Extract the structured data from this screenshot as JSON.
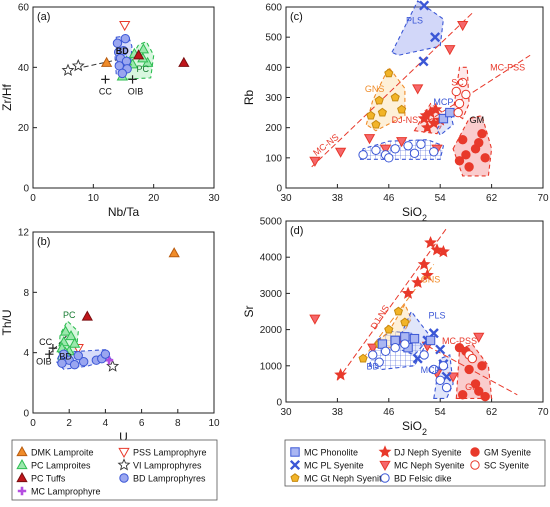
{
  "chart_data": [
    {
      "panel": "(a)",
      "type": "scatter",
      "xlabel": "Nb/Ta",
      "ylabel": "Zr/Hf",
      "xlim": [
        0,
        30
      ],
      "ylim": [
        0,
        60
      ],
      "xticks": [
        "0",
        "10",
        "20",
        "30"
      ],
      "yticks": [
        "0",
        "20",
        "40",
        "60"
      ],
      "series": [
        {
          "name": "DMK Lamproite",
          "points": [
            [
              12.2,
              41.5
            ]
          ]
        },
        {
          "name": "PSS Lamprophyre",
          "points": [
            [
              15.2,
              54
            ]
          ]
        },
        {
          "name": "PC Lamproites",
          "points": [
            [
              14.8,
              37
            ],
            [
              16.5,
              41
            ],
            [
              16.8,
              44.5
            ],
            [
              18.3,
              46
            ],
            [
              19,
              41.5
            ],
            [
              18.2,
              43
            ],
            [
              15.5,
              42
            ]
          ]
        },
        {
          "name": "VI Lamprophyres",
          "points": [
            [
              5.8,
              39
            ],
            [
              7.5,
              40.5
            ]
          ]
        },
        {
          "name": "PC Tuffs",
          "points": [
            [
              17.5,
              44
            ],
            [
              25,
              41.5
            ]
          ]
        },
        {
          "name": "BD Lamprophyres",
          "points": [
            [
              14,
              48
            ],
            [
              15.3,
              49.5
            ],
            [
              14.2,
              45
            ],
            [
              15,
              45.5
            ],
            [
              14.5,
              43
            ],
            [
              15.5,
              42
            ],
            [
              14.3,
              40.5
            ],
            [
              15.6,
              39.5
            ],
            [
              14.8,
              38
            ]
          ]
        }
      ],
      "fields": [
        "BD",
        "PC"
      ],
      "labels": [
        "CC",
        "OIB"
      ],
      "references": [
        {
          "name": "CC",
          "points": [
            [
              12,
              36
            ]
          ]
        },
        {
          "name": "OIB",
          "points": [
            [
              16.5,
              36
            ]
          ]
        }
      ]
    },
    {
      "panel": "(b)",
      "type": "scatter",
      "xlabel": "U",
      "ylabel": "Th/U",
      "xlim": [
        0,
        10
      ],
      "ylim": [
        0,
        12
      ],
      "xticks": [
        "0",
        "2",
        "4",
        "6",
        "8",
        "10"
      ],
      "yticks": [
        "0",
        "4",
        "8",
        "12"
      ],
      "series": [
        {
          "name": "DMK Lamproite",
          "points": [
            [
              7.8,
              10.6
            ]
          ]
        },
        {
          "name": "PSS Lamprophyre",
          "points": [
            [
              2.5,
              4.3
            ]
          ]
        },
        {
          "name": "PC Lamproites",
          "points": [
            [
              1.8,
              5.4
            ],
            [
              2.1,
              5.1
            ],
            [
              1.7,
              4.7
            ],
            [
              2.3,
              4.6
            ],
            [
              1.6,
              4.3
            ],
            [
              2,
              4.1
            ],
            [
              1.8,
              4
            ]
          ]
        },
        {
          "name": "VI Lamprophyres",
          "points": [
            [
              4.4,
              3.1
            ]
          ]
        },
        {
          "name": "PC Tuffs",
          "points": [
            [
              3,
              6.4
            ]
          ]
        },
        {
          "name": "MC Lamprophyre",
          "points": [
            [
              4.2,
              3.5
            ]
          ]
        },
        {
          "name": "BD Lamprophyres",
          "points": [
            [
              1.7,
              3.9
            ],
            [
              2,
              3.5
            ],
            [
              2.3,
              3.2
            ],
            [
              2.8,
              3.4
            ],
            [
              3.5,
              3.5
            ],
            [
              3.8,
              3.6
            ],
            [
              4,
              3.9
            ],
            [
              1.6,
              3.3
            ],
            [
              2.5,
              3.8
            ]
          ]
        }
      ],
      "fields": [
        "BD",
        "PC"
      ],
      "labels": [
        "CC",
        "OIB"
      ],
      "references": [
        {
          "name": "CC",
          "points": [
            [
              1.1,
              4.3
            ]
          ]
        },
        {
          "name": "OIB",
          "points": [
            [
              0.9,
              3.9
            ]
          ]
        }
      ]
    },
    {
      "panel": "(c)",
      "type": "scatter",
      "xlabel": "SiO2",
      "ylabel": "Rb",
      "xlim": [
        30,
        70
      ],
      "ylim": [
        0,
        600
      ],
      "xticks": [
        "30",
        "38",
        "46",
        "54",
        "62",
        "70"
      ],
      "yticks": [
        "0",
        "100",
        "200",
        "300",
        "400",
        "500",
        "600"
      ],
      "series": [
        {
          "name": "DJ Neph Syenite",
          "points": [
            [
              51.5,
              230
            ],
            [
              52,
              200
            ],
            [
              52.5,
              250
            ],
            [
              53,
              215
            ],
            [
              53.3,
              260
            ],
            [
              54,
              225
            ],
            [
              51.8,
              240
            ]
          ]
        },
        {
          "name": "MC Neph Syenite",
          "points": [
            [
              34.5,
              90
            ],
            [
              38.5,
              120
            ],
            [
              43,
              165
            ],
            [
              45.5,
              130
            ],
            [
              48,
              155
            ],
            [
              50.5,
              330
            ],
            [
              53.5,
              130
            ],
            [
              55.5,
              460
            ],
            [
              57.5,
              540
            ]
          ]
        },
        {
          "name": "MC Gt Neph Syenite",
          "points": [
            [
              43.2,
              240
            ],
            [
              44.5,
              290
            ],
            [
              45,
              250
            ],
            [
              46,
              380
            ],
            [
              47,
              300
            ],
            [
              48,
              260
            ],
            [
              44,
              210
            ]
          ]
        },
        {
          "name": "MC PL Syenite",
          "points": [
            [
              51.5,
              605
            ],
            [
              53.2,
              500
            ],
            [
              51.4,
              420
            ]
          ]
        },
        {
          "name": "MC Phonolite",
          "points": [
            [
              54.5,
              230
            ],
            [
              55.5,
              250
            ]
          ]
        },
        {
          "name": "BD Felsic dike",
          "points": [
            [
              42,
              110
            ],
            [
              44,
              125
            ],
            [
              45.5,
              110
            ],
            [
              47,
              130
            ],
            [
              49,
              140
            ],
            [
              51,
              145
            ],
            [
              53,
              120
            ],
            [
              50,
              115
            ],
            [
              46,
              100
            ]
          ]
        },
        {
          "name": "GM Syenite",
          "points": [
            [
              57,
              90
            ],
            [
              58,
              110
            ],
            [
              59.5,
              130
            ],
            [
              60,
              150
            ],
            [
              61,
              100
            ],
            [
              58.5,
              70
            ],
            [
              60.5,
              180
            ],
            [
              57.5,
              160
            ]
          ]
        },
        {
          "name": "SC Syenite",
          "points": [
            [
              56.5,
              320
            ],
            [
              57,
              280
            ],
            [
              57.5,
              350
            ],
            [
              58,
              310
            ],
            [
              56.8,
              250
            ]
          ]
        }
      ],
      "labels": [
        "PLS",
        "GNS",
        "MCP",
        "SC",
        "GM",
        "DJ-NS",
        "MC-PSS",
        "MC-NS"
      ]
    },
    {
      "panel": "(d)",
      "type": "scatter",
      "xlabel": "SiO2",
      "ylabel": "Sr",
      "xlim": [
        30,
        70
      ],
      "ylim": [
        0,
        5000
      ],
      "xticks": [
        "30",
        "38",
        "46",
        "54",
        "62",
        "70"
      ],
      "yticks": [
        "0",
        "1000",
        "2000",
        "3000",
        "4000",
        "5000"
      ],
      "series": [
        {
          "name": "DJ Neph Syenite",
          "points": [
            [
              38.5,
              750
            ],
            [
              49,
              3000
            ],
            [
              50.5,
              3300
            ],
            [
              52,
              3500
            ],
            [
              52.5,
              4400
            ],
            [
              53.5,
              4200
            ],
            [
              54.5,
              4150
            ],
            [
              51.5,
              3800
            ]
          ]
        },
        {
          "name": "MC Neph Syenite",
          "points": [
            [
              34.5,
              2300
            ],
            [
              43.5,
              1500
            ],
            [
              47.5,
              1700
            ],
            [
              52,
              1550
            ],
            [
              53.5,
              800
            ],
            [
              56,
              700
            ],
            [
              60,
              1800
            ]
          ]
        },
        {
          "name": "MC Gt Neph Syenite",
          "points": [
            [
              42,
              1200
            ],
            [
              44.5,
              1600
            ],
            [
              46,
              2000
            ],
            [
              47.5,
              2500
            ],
            [
              48.5,
              2200
            ]
          ]
        },
        {
          "name": "MC PL Syenite",
          "points": [
            [
              50.5,
              1200
            ],
            [
              52,
              1700
            ],
            [
              53,
              1900
            ],
            [
              54,
              1450
            ],
            [
              55,
              700
            ],
            [
              54.5,
              1050
            ]
          ]
        },
        {
          "name": "MC Phonolite",
          "points": [
            [
              45,
              1600
            ],
            [
              47,
              1700
            ],
            [
              48.5,
              1800
            ],
            [
              50,
              1750
            ],
            [
              49,
              1500
            ],
            [
              52.5,
              1700
            ]
          ]
        },
        {
          "name": "BD Felsic dike",
          "points": [
            [
              43.5,
              1300
            ],
            [
              44.5,
              1100
            ],
            [
              45.5,
              1400
            ],
            [
              47,
              1500
            ],
            [
              48.5,
              1600
            ],
            [
              51.5,
              1300
            ],
            [
              53,
              900
            ],
            [
              54,
              600
            ],
            [
              55,
              400
            ],
            [
              54.5,
              1000
            ]
          ]
        },
        {
          "name": "GM Syenite",
          "points": [
            [
              57,
              1500
            ],
            [
              58,
              1400
            ],
            [
              58.5,
              900
            ],
            [
              59.5,
              500
            ],
            [
              60,
              300
            ],
            [
              61,
              150
            ],
            [
              57.5,
              200
            ],
            [
              60.5,
              1000
            ]
          ]
        },
        {
          "name": "SC Syenite",
          "points": [
            [
              58.5,
              1300
            ],
            [
              59,
              1200
            ]
          ]
        }
      ],
      "labels": [
        "GNS",
        "PLS",
        "DJ-NS",
        "BD",
        "MC-PSS",
        "MCP",
        "GM"
      ]
    }
  ],
  "legend_left": [
    "DMK Lamproite",
    "PSS Lamprophyre",
    "PC Lamproites",
    "VI Lamprophyres",
    "PC Tuffs",
    "BD Lamprophyres",
    "MC Lamprophyre"
  ],
  "legend_right": [
    "MC Phonolite",
    "DJ Neph Syenite",
    "GM Syenite",
    "MC PL Syenite",
    "MC Neph Syenite",
    "SC Syenite",
    "MC Gt Neph Syenite",
    "BD Felsic dike"
  ],
  "colors": {
    "orange": "#f08c2a",
    "red": "#e8392b",
    "darkred": "#c0161b",
    "green": "#2ebd52",
    "blue": "#3b57d6",
    "purple": "#b44de0",
    "gold": "#f2b428",
    "lightred": "#f5676b"
  }
}
